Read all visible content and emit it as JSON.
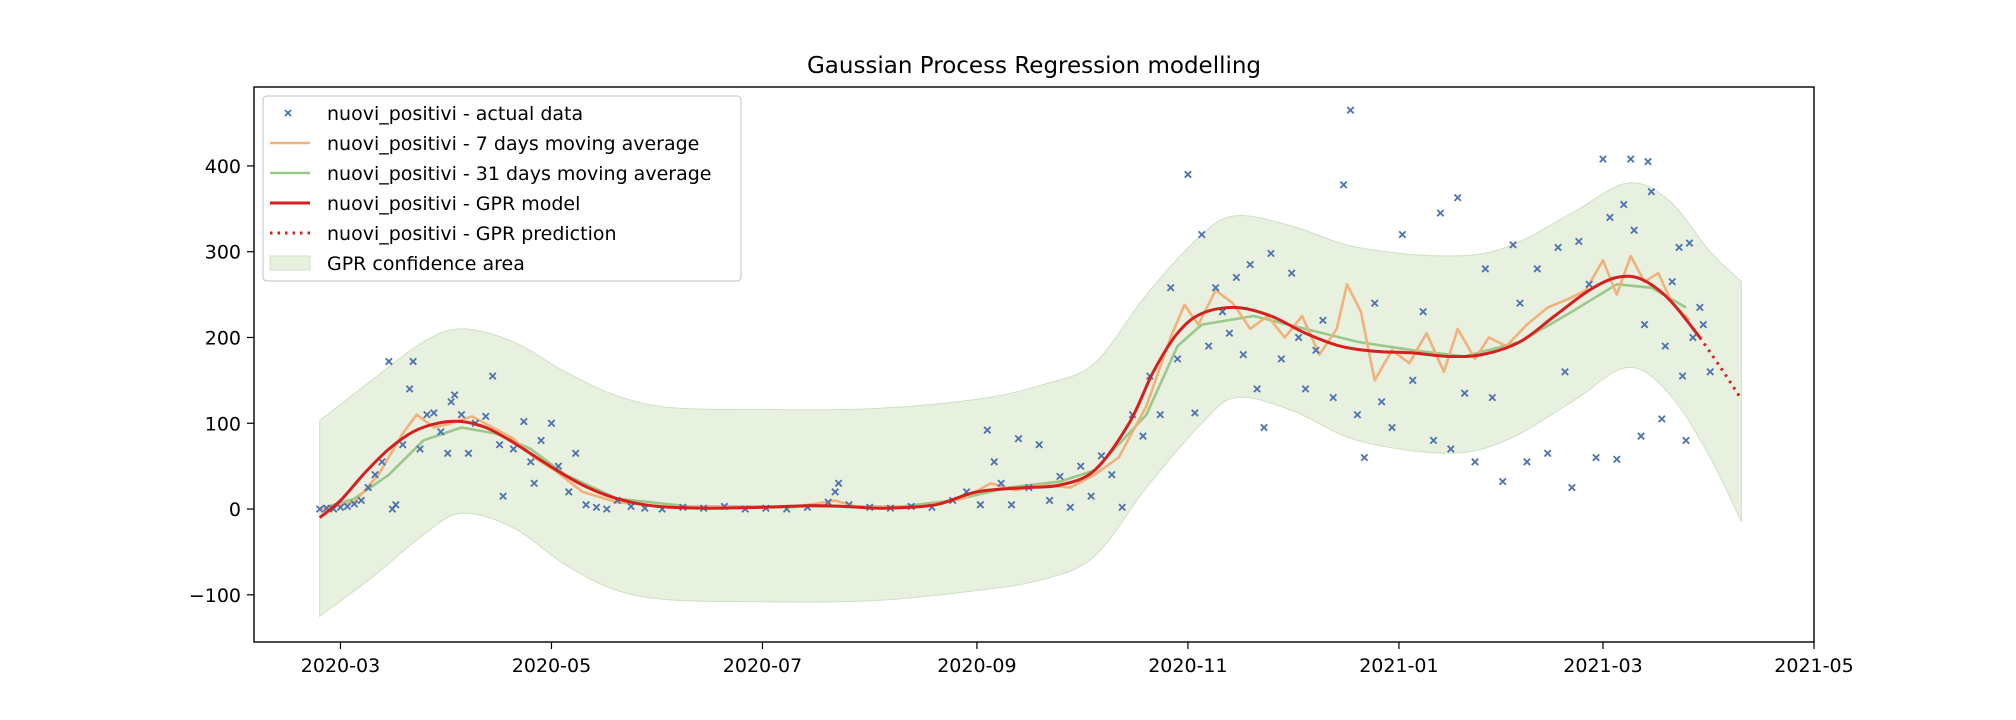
{
  "chart_data": {
    "type": "line",
    "title": "Gaussian Process Regression modelling",
    "xlabel": "",
    "ylabel": "",
    "xlim": [
      "2020-02-05",
      "2021-05-01"
    ],
    "ylim": [
      -155,
      492
    ],
    "x_ticks": [
      "2020-03",
      "2020-05",
      "2020-07",
      "2020-09",
      "2020-11",
      "2021-01",
      "2021-03",
      "2021-05"
    ],
    "y_ticks": [
      -100,
      0,
      100,
      200,
      300,
      400
    ],
    "y_tick_labels": [
      "−100",
      "0",
      "100",
      "200",
      "300",
      "400"
    ],
    "grid": false,
    "legend_position": "upper-left",
    "legend": [
      {
        "label": "nuovi_positivi - actual data",
        "kind": "marker",
        "color": "#4c72b0"
      },
      {
        "label": "nuovi_positivi - 7 days moving average",
        "kind": "line",
        "color": "#f0b27a"
      },
      {
        "label": "nuovi_positivi - 31 days moving average",
        "kind": "line",
        "color": "#9bc88a"
      },
      {
        "label": "nuovi_positivi - GPR model",
        "kind": "line",
        "color": "#d62020"
      },
      {
        "label": "nuovi_positivi - GPR prediction",
        "kind": "dotted",
        "color": "#d62020"
      },
      {
        "label": "GPR confidence area",
        "kind": "area",
        "color": "#e8f0e0"
      }
    ],
    "gpr_model": [
      [
        "2020-02-24",
        -10
      ],
      [
        "2020-03-01",
        10
      ],
      [
        "2020-03-08",
        42
      ],
      [
        "2020-03-15",
        70
      ],
      [
        "2020-03-22",
        90
      ],
      [
        "2020-03-29",
        100
      ],
      [
        "2020-04-05",
        102
      ],
      [
        "2020-04-12",
        95
      ],
      [
        "2020-04-19",
        80
      ],
      [
        "2020-04-26",
        62
      ],
      [
        "2020-05-03",
        44
      ],
      [
        "2020-05-10",
        28
      ],
      [
        "2020-05-17",
        16
      ],
      [
        "2020-05-24",
        8
      ],
      [
        "2020-06-01",
        3
      ],
      [
        "2020-06-15",
        1
      ],
      [
        "2020-07-01",
        2
      ],
      [
        "2020-07-15",
        4
      ],
      [
        "2020-07-25",
        3
      ],
      [
        "2020-08-05",
        1
      ],
      [
        "2020-08-20",
        5
      ],
      [
        "2020-09-01",
        20
      ],
      [
        "2020-09-15",
        25
      ],
      [
        "2020-09-25",
        28
      ],
      [
        "2020-10-05",
        45
      ],
      [
        "2020-10-15",
        100
      ],
      [
        "2020-10-22",
        160
      ],
      [
        "2020-10-29",
        205
      ],
      [
        "2020-11-05",
        228
      ],
      [
        "2020-11-15",
        235
      ],
      [
        "2020-11-25",
        225
      ],
      [
        "2020-12-05",
        205
      ],
      [
        "2020-12-15",
        190
      ],
      [
        "2020-12-25",
        184
      ],
      [
        "2021-01-05",
        182
      ],
      [
        "2021-01-15",
        178
      ],
      [
        "2021-01-25",
        180
      ],
      [
        "2021-02-05",
        195
      ],
      [
        "2021-02-15",
        225
      ],
      [
        "2021-02-25",
        255
      ],
      [
        "2021-03-05",
        270
      ],
      [
        "2021-03-12",
        268
      ],
      [
        "2021-03-20",
        245
      ],
      [
        "2021-03-29",
        200
      ]
    ],
    "gpr_prediction": [
      [
        "2021-03-29",
        200
      ],
      [
        "2021-04-04",
        165
      ],
      [
        "2021-04-10",
        128
      ]
    ],
    "confidence_upper": [
      [
        "2020-02-24",
        103
      ],
      [
        "2020-03-10",
        150
      ],
      [
        "2020-03-25",
        195
      ],
      [
        "2020-04-05",
        210
      ],
      [
        "2020-04-20",
        195
      ],
      [
        "2020-05-05",
        160
      ],
      [
        "2020-05-20",
        132
      ],
      [
        "2020-06-05",
        118
      ],
      [
        "2020-07-01",
        116
      ],
      [
        "2020-08-01",
        117
      ],
      [
        "2020-09-01",
        128
      ],
      [
        "2020-09-20",
        145
      ],
      [
        "2020-10-05",
        170
      ],
      [
        "2020-10-20",
        250
      ],
      [
        "2020-11-05",
        320
      ],
      [
        "2020-11-15",
        342
      ],
      [
        "2020-12-01",
        330
      ],
      [
        "2020-12-20",
        305
      ],
      [
        "2021-01-15",
        295
      ],
      [
        "2021-02-01",
        305
      ],
      [
        "2021-02-20",
        345
      ],
      [
        "2021-03-08",
        380
      ],
      [
        "2021-03-20",
        360
      ],
      [
        "2021-04-01",
        300
      ],
      [
        "2021-04-10",
        265
      ]
    ],
    "confidence_lower": [
      [
        "2020-02-24",
        -125
      ],
      [
        "2020-03-10",
        -80
      ],
      [
        "2020-03-25",
        -30
      ],
      [
        "2020-04-05",
        -5
      ],
      [
        "2020-04-20",
        -22
      ],
      [
        "2020-05-05",
        -65
      ],
      [
        "2020-05-20",
        -95
      ],
      [
        "2020-06-05",
        -106
      ],
      [
        "2020-07-01",
        -108
      ],
      [
        "2020-08-01",
        -107
      ],
      [
        "2020-09-01",
        -95
      ],
      [
        "2020-09-20",
        -82
      ],
      [
        "2020-10-05",
        -55
      ],
      [
        "2020-10-20",
        25
      ],
      [
        "2020-11-05",
        100
      ],
      [
        "2020-11-15",
        130
      ],
      [
        "2020-12-01",
        115
      ],
      [
        "2020-12-20",
        80
      ],
      [
        "2021-01-15",
        65
      ],
      [
        "2021-02-01",
        80
      ],
      [
        "2021-02-20",
        125
      ],
      [
        "2021-03-08",
        165
      ],
      [
        "2021-03-20",
        135
      ],
      [
        "2021-04-01",
        60
      ],
      [
        "2021-04-10",
        -15
      ]
    ],
    "ma31": [
      [
        "2020-02-24",
        0
      ],
      [
        "2020-03-05",
        12
      ],
      [
        "2020-03-15",
        40
      ],
      [
        "2020-03-25",
        80
      ],
      [
        "2020-04-05",
        95
      ],
      [
        "2020-04-15",
        88
      ],
      [
        "2020-04-25",
        70
      ],
      [
        "2020-05-05",
        40
      ],
      [
        "2020-05-20",
        12
      ],
      [
        "2020-06-10",
        3
      ],
      [
        "2020-07-10",
        3
      ],
      [
        "2020-08-10",
        3
      ],
      [
        "2020-08-25",
        10
      ],
      [
        "2020-09-10",
        25
      ],
      [
        "2020-09-25",
        32
      ],
      [
        "2020-10-05",
        45
      ],
      [
        "2020-10-20",
        110
      ],
      [
        "2020-10-29",
        190
      ],
      [
        "2020-11-05",
        215
      ],
      [
        "2020-11-20",
        225
      ],
      [
        "2020-12-05",
        210
      ],
      [
        "2020-12-20",
        195
      ],
      [
        "2021-01-05",
        185
      ],
      [
        "2021-01-20",
        178
      ],
      [
        "2021-02-05",
        195
      ],
      [
        "2021-02-20",
        230
      ],
      [
        "2021-03-05",
        262
      ],
      [
        "2021-03-15",
        258
      ],
      [
        "2021-03-25",
        235
      ]
    ],
    "ma7": [
      [
        "2020-02-24",
        0
      ],
      [
        "2020-03-05",
        8
      ],
      [
        "2020-03-12",
        40
      ],
      [
        "2020-03-19",
        88
      ],
      [
        "2020-03-23",
        110
      ],
      [
        "2020-03-28",
        95
      ],
      [
        "2020-04-02",
        100
      ],
      [
        "2020-04-08",
        108
      ],
      [
        "2020-04-14",
        95
      ],
      [
        "2020-04-20",
        82
      ],
      [
        "2020-04-26",
        60
      ],
      [
        "2020-05-02",
        45
      ],
      [
        "2020-05-10",
        20
      ],
      [
        "2020-05-20",
        8
      ],
      [
        "2020-06-05",
        2
      ],
      [
        "2020-07-10",
        2
      ],
      [
        "2020-07-22",
        10
      ],
      [
        "2020-07-28",
        3
      ],
      [
        "2020-08-15",
        2
      ],
      [
        "2020-08-28",
        12
      ],
      [
        "2020-09-05",
        30
      ],
      [
        "2020-09-12",
        22
      ],
      [
        "2020-09-20",
        28
      ],
      [
        "2020-09-28",
        25
      ],
      [
        "2020-10-05",
        40
      ],
      [
        "2020-10-12",
        60
      ],
      [
        "2020-10-20",
        120
      ],
      [
        "2020-10-27",
        200
      ],
      [
        "2020-10-31",
        238
      ],
      [
        "2020-11-04",
        215
      ],
      [
        "2020-11-09",
        255
      ],
      [
        "2020-11-14",
        240
      ],
      [
        "2020-11-19",
        210
      ],
      [
        "2020-11-24",
        225
      ],
      [
        "2020-11-29",
        200
      ],
      [
        "2020-12-04",
        225
      ],
      [
        "2020-12-09",
        180
      ],
      [
        "2020-12-14",
        210
      ],
      [
        "2020-12-17",
        262
      ],
      [
        "2020-12-21",
        230
      ],
      [
        "2020-12-25",
        150
      ],
      [
        "2020-12-30",
        185
      ],
      [
        "2021-01-04",
        170
      ],
      [
        "2021-01-09",
        205
      ],
      [
        "2021-01-14",
        160
      ],
      [
        "2021-01-18",
        210
      ],
      [
        "2021-01-23",
        175
      ],
      [
        "2021-01-27",
        200
      ],
      [
        "2021-02-01",
        190
      ],
      [
        "2021-02-07",
        215
      ],
      [
        "2021-02-13",
        235
      ],
      [
        "2021-02-19",
        245
      ],
      [
        "2021-02-24",
        255
      ],
      [
        "2021-03-01",
        290
      ],
      [
        "2021-03-05",
        250
      ],
      [
        "2021-03-09",
        295
      ],
      [
        "2021-03-13",
        265
      ],
      [
        "2021-03-17",
        275
      ],
      [
        "2021-03-21",
        240
      ],
      [
        "2021-03-26",
        220
      ]
    ],
    "actual_data": [
      [
        "2020-02-24",
        0
      ],
      [
        "2020-02-26",
        1
      ],
      [
        "2020-02-28",
        0
      ],
      [
        "2020-03-01",
        2
      ],
      [
        "2020-03-03",
        3
      ],
      [
        "2020-03-05",
        6
      ],
      [
        "2020-03-07",
        10
      ],
      [
        "2020-03-09",
        25
      ],
      [
        "2020-03-11",
        40
      ],
      [
        "2020-03-13",
        55
      ],
      [
        "2020-03-15",
        172
      ],
      [
        "2020-03-16",
        0
      ],
      [
        "2020-03-17",
        5
      ],
      [
        "2020-03-19",
        75
      ],
      [
        "2020-03-21",
        140
      ],
      [
        "2020-03-22",
        172
      ],
      [
        "2020-03-24",
        70
      ],
      [
        "2020-03-26",
        110
      ],
      [
        "2020-03-28",
        112
      ],
      [
        "2020-03-30",
        90
      ],
      [
        "2020-04-01",
        65
      ],
      [
        "2020-04-02",
        125
      ],
      [
        "2020-04-03",
        133
      ],
      [
        "2020-04-05",
        110
      ],
      [
        "2020-04-07",
        65
      ],
      [
        "2020-04-09",
        100
      ],
      [
        "2020-04-12",
        108
      ],
      [
        "2020-04-14",
        155
      ],
      [
        "2020-04-16",
        75
      ],
      [
        "2020-04-17",
        15
      ],
      [
        "2020-04-20",
        70
      ],
      [
        "2020-04-23",
        102
      ],
      [
        "2020-04-25",
        55
      ],
      [
        "2020-04-26",
        30
      ],
      [
        "2020-04-28",
        80
      ],
      [
        "2020-05-01",
        100
      ],
      [
        "2020-05-03",
        50
      ],
      [
        "2020-05-06",
        20
      ],
      [
        "2020-05-08",
        65
      ],
      [
        "2020-05-11",
        5
      ],
      [
        "2020-05-14",
        2
      ],
      [
        "2020-05-17",
        0
      ],
      [
        "2020-05-20",
        10
      ],
      [
        "2020-05-24",
        3
      ],
      [
        "2020-05-28",
        1
      ],
      [
        "2020-06-02",
        0
      ],
      [
        "2020-06-08",
        2
      ],
      [
        "2020-06-14",
        1
      ],
      [
        "2020-06-20",
        3
      ],
      [
        "2020-06-26",
        0
      ],
      [
        "2020-07-02",
        1
      ],
      [
        "2020-07-08",
        0
      ],
      [
        "2020-07-14",
        2
      ],
      [
        "2020-07-20",
        8
      ],
      [
        "2020-07-22",
        20
      ],
      [
        "2020-07-23",
        30
      ],
      [
        "2020-07-26",
        5
      ],
      [
        "2020-08-01",
        2
      ],
      [
        "2020-08-07",
        1
      ],
      [
        "2020-08-13",
        3
      ],
      [
        "2020-08-19",
        2
      ],
      [
        "2020-08-25",
        10
      ],
      [
        "2020-08-29",
        20
      ],
      [
        "2020-09-02",
        5
      ],
      [
        "2020-09-04",
        92
      ],
      [
        "2020-09-06",
        55
      ],
      [
        "2020-09-08",
        30
      ],
      [
        "2020-09-11",
        5
      ],
      [
        "2020-09-13",
        82
      ],
      [
        "2020-09-16",
        25
      ],
      [
        "2020-09-19",
        75
      ],
      [
        "2020-09-22",
        10
      ],
      [
        "2020-09-25",
        38
      ],
      [
        "2020-09-28",
        2
      ],
      [
        "2020-10-01",
        50
      ],
      [
        "2020-10-04",
        15
      ],
      [
        "2020-10-07",
        62
      ],
      [
        "2020-10-10",
        40
      ],
      [
        "2020-10-13",
        2
      ],
      [
        "2020-10-16",
        110
      ],
      [
        "2020-10-19",
        85
      ],
      [
        "2020-10-21",
        155
      ],
      [
        "2020-10-24",
        110
      ],
      [
        "2020-10-27",
        258
      ],
      [
        "2020-10-29",
        175
      ],
      [
        "2020-11-01",
        390
      ],
      [
        "2020-11-03",
        112
      ],
      [
        "2020-11-05",
        320
      ],
      [
        "2020-11-07",
        190
      ],
      [
        "2020-11-09",
        258
      ],
      [
        "2020-11-11",
        230
      ],
      [
        "2020-11-13",
        205
      ],
      [
        "2020-11-15",
        270
      ],
      [
        "2020-11-17",
        180
      ],
      [
        "2020-11-19",
        285
      ],
      [
        "2020-11-21",
        140
      ],
      [
        "2020-11-23",
        95
      ],
      [
        "2020-11-25",
        298
      ],
      [
        "2020-11-28",
        175
      ],
      [
        "2020-12-01",
        275
      ],
      [
        "2020-12-03",
        200
      ],
      [
        "2020-12-05",
        140
      ],
      [
        "2020-12-08",
        185
      ],
      [
        "2020-12-10",
        220
      ],
      [
        "2020-12-13",
        130
      ],
      [
        "2020-12-16",
        378
      ],
      [
        "2020-12-18",
        465
      ],
      [
        "2020-12-20",
        110
      ],
      [
        "2020-12-22",
        60
      ],
      [
        "2020-12-25",
        240
      ],
      [
        "2020-12-27",
        125
      ],
      [
        "2020-12-30",
        95
      ],
      [
        "2021-01-02",
        320
      ],
      [
        "2021-01-05",
        150
      ],
      [
        "2021-01-08",
        230
      ],
      [
        "2021-01-11",
        80
      ],
      [
        "2021-01-13",
        345
      ],
      [
        "2021-01-16",
        70
      ],
      [
        "2021-01-18",
        363
      ],
      [
        "2021-01-20",
        135
      ],
      [
        "2021-01-23",
        55
      ],
      [
        "2021-01-26",
        280
      ],
      [
        "2021-01-28",
        130
      ],
      [
        "2021-01-31",
        32
      ],
      [
        "2021-02-03",
        308
      ],
      [
        "2021-02-05",
        240
      ],
      [
        "2021-02-07",
        55
      ],
      [
        "2021-02-10",
        280
      ],
      [
        "2021-02-13",
        65
      ],
      [
        "2021-02-16",
        305
      ],
      [
        "2021-02-18",
        160
      ],
      [
        "2021-02-20",
        25
      ],
      [
        "2021-02-22",
        312
      ],
      [
        "2021-02-25",
        262
      ],
      [
        "2021-02-27",
        60
      ],
      [
        "2021-03-01",
        408
      ],
      [
        "2021-03-03",
        340
      ],
      [
        "2021-03-05",
        58
      ],
      [
        "2021-03-07",
        355
      ],
      [
        "2021-03-09",
        408
      ],
      [
        "2021-03-10",
        325
      ],
      [
        "2021-03-12",
        85
      ],
      [
        "2021-03-13",
        215
      ],
      [
        "2021-03-14",
        405
      ],
      [
        "2021-03-15",
        370
      ],
      [
        "2021-03-18",
        105
      ],
      [
        "2021-03-19",
        190
      ],
      [
        "2021-03-21",
        265
      ],
      [
        "2021-03-23",
        305
      ],
      [
        "2021-03-24",
        155
      ],
      [
        "2021-03-25",
        80
      ],
      [
        "2021-03-26",
        310
      ],
      [
        "2021-03-27",
        200
      ],
      [
        "2021-03-29",
        235
      ],
      [
        "2021-03-30",
        215
      ],
      [
        "2021-04-01",
        160
      ]
    ]
  }
}
